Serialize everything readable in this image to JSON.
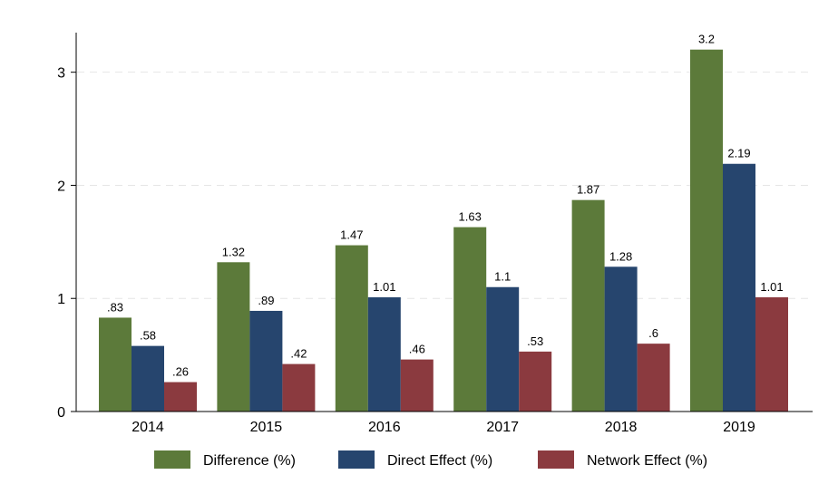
{
  "chart_data": {
    "type": "bar",
    "categories": [
      "2014",
      "2015",
      "2016",
      "2017",
      "2018",
      "2019"
    ],
    "series": [
      {
        "name": "Difference (%)",
        "color": "#5c7a3a",
        "values": [
          0.83,
          1.32,
          1.47,
          1.63,
          1.87,
          3.2
        ],
        "labels": [
          ".83",
          "1.32",
          "1.47",
          "1.63",
          "1.87",
          "3.2"
        ]
      },
      {
        "name": "Direct Effect (%)",
        "color": "#26456e",
        "values": [
          0.58,
          0.89,
          1.01,
          1.1,
          1.28,
          2.19
        ],
        "labels": [
          ".58",
          ".89",
          "1.01",
          "1.1",
          "1.28",
          "2.19"
        ]
      },
      {
        "name": "Network Effect (%)",
        "color": "#8b3a3f",
        "values": [
          0.26,
          0.42,
          0.46,
          0.53,
          0.6,
          1.01
        ],
        "labels": [
          ".26",
          ".42",
          ".46",
          ".53",
          ".6",
          "1.01"
        ]
      }
    ],
    "yticks": [
      0,
      1,
      2,
      3
    ],
    "ytick_labels": [
      "0",
      "1",
      "2",
      "3"
    ],
    "ylim": [
      0,
      3.35
    ],
    "grid": true,
    "legend_position": "bottom",
    "title": "",
    "xlabel": "",
    "ylabel": ""
  }
}
